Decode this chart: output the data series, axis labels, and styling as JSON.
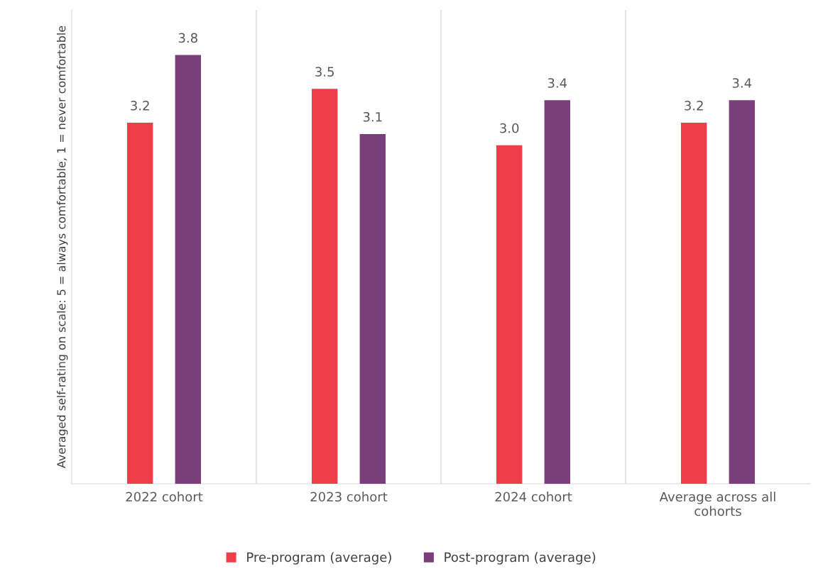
{
  "chart_data": {
    "type": "bar",
    "ylabel": "Averaged self-rating on scale: 5 = always comfortable, 1 = never comfortable",
    "categories": [
      "2022 cohort",
      "2023 cohort",
      "2024 cohort",
      "Average across all cohorts"
    ],
    "series": [
      {
        "name": "Pre-program (average)",
        "color": "#ef3e4a",
        "values": [
          3.2,
          3.5,
          3.0,
          3.2
        ],
        "value_labels": [
          "3.2",
          "3.5",
          "3.0",
          "3.2"
        ]
      },
      {
        "name": "Post-program (average)",
        "color": "#7a3f7a",
        "values": [
          3.8,
          3.1,
          3.4,
          3.4
        ],
        "value_labels": [
          "3.8",
          "3.1",
          "3.4",
          "3.4"
        ]
      }
    ],
    "ylim": [
      0,
      4.2
    ],
    "tick_labels": "x",
    "grid": "x",
    "legend": "bottom"
  }
}
